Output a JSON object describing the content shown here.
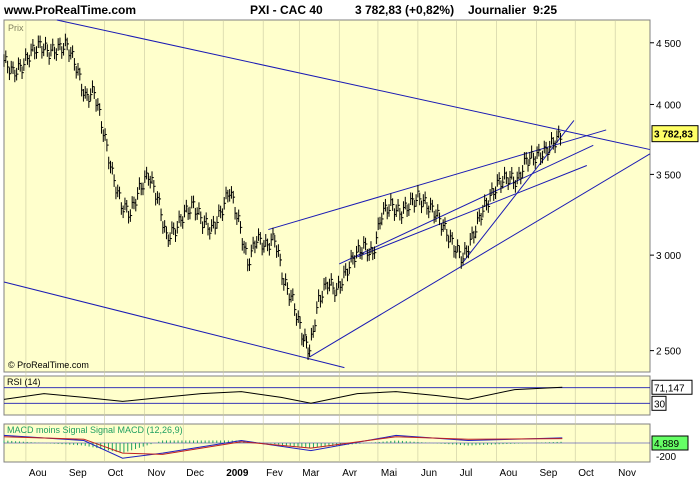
{
  "header": {
    "site": "www.ProRealTime.com",
    "instrument": "PXI - CAC 40",
    "quote": "3 782,83 (+0,82%)",
    "period": "Journalier",
    "time": "9:25"
  },
  "colors": {
    "panel_bg": "#ffffcc",
    "trendline": "#1a1ab4",
    "bars": "#000000",
    "grid": "#c8c8a0",
    "macd_line": "#2020c0",
    "signal_line": "#c02020",
    "macd_hist": "#20a060"
  },
  "watermark": "© ProRealTime.com",
  "chart_data": [
    {
      "type": "bar",
      "title": "Prix",
      "last_price_label": "3 782,83",
      "y_scale": "log",
      "ylim": [
        2400,
        4700
      ],
      "y_ticks": [
        2500,
        3000,
        3500,
        4000,
        4500
      ],
      "y_tick_labels": [
        "2 500",
        "3 000",
        "3 500",
        "4 000",
        "4 500"
      ],
      "x_months": [
        "Aou",
        "Sep",
        "Oct",
        "Nov",
        "Dec",
        "2009",
        "Fev",
        "Mar",
        "Avr",
        "Mai",
        "Jun",
        "Jul",
        "Aou",
        "Sep",
        "Oct",
        "Nov"
      ],
      "x_month_start_dates": [
        "2008-08-01",
        "2008-09-01",
        "2008-10-01",
        "2008-11-01",
        "2008-12-01",
        "2009-01-01",
        "2009-02-01",
        "2009-03-01",
        "2009-04-01",
        "2009-05-01",
        "2009-06-01",
        "2009-07-01",
        "2009-08-01",
        "2009-09-01",
        "2009-10-01",
        "2009-11-01"
      ],
      "xlim": [
        "2008-07-15",
        "2009-11-28"
      ],
      "series": [
        {
          "values": [
            [
              "2008-07-15",
              4350
            ],
            [
              "2008-07-22",
              4250
            ],
            [
              "2008-07-29",
              4300
            ],
            [
              "2008-08-05",
              4420
            ],
            [
              "2008-08-12",
              4480
            ],
            [
              "2008-08-19",
              4420
            ],
            [
              "2008-08-26",
              4450
            ],
            [
              "2008-09-02",
              4480
            ],
            [
              "2008-09-09",
              4300
            ],
            [
              "2008-09-16",
              4050
            ],
            [
              "2008-09-23",
              4100
            ],
            [
              "2008-09-30",
              3800
            ],
            [
              "2008-10-07",
              3500
            ],
            [
              "2008-10-14",
              3300
            ],
            [
              "2008-10-21",
              3250
            ],
            [
              "2008-10-28",
              3400
            ],
            [
              "2008-11-04",
              3500
            ],
            [
              "2008-11-11",
              3350
            ],
            [
              "2008-11-18",
              3100
            ],
            [
              "2008-11-25",
              3150
            ],
            [
              "2008-12-02",
              3250
            ],
            [
              "2008-12-09",
              3300
            ],
            [
              "2008-12-16",
              3200
            ],
            [
              "2008-12-23",
              3150
            ],
            [
              "2008-12-30",
              3250
            ],
            [
              "2009-01-06",
              3400
            ],
            [
              "2009-01-13",
              3200
            ],
            [
              "2009-01-20",
              2950
            ],
            [
              "2009-01-27",
              3100
            ],
            [
              "2009-02-03",
              3050
            ],
            [
              "2009-02-10",
              3100
            ],
            [
              "2009-02-17",
              2850
            ],
            [
              "2009-02-24",
              2750
            ],
            [
              "2009-03-03",
              2580
            ],
            [
              "2009-03-09",
              2500
            ],
            [
              "2009-03-16",
              2750
            ],
            [
              "2009-03-23",
              2850
            ],
            [
              "2009-03-30",
              2800
            ],
            [
              "2009-04-06",
              2900
            ],
            [
              "2009-04-13",
              3000
            ],
            [
              "2009-04-20",
              3050
            ],
            [
              "2009-04-27",
              3000
            ],
            [
              "2009-05-04",
              3250
            ],
            [
              "2009-05-11",
              3300
            ],
            [
              "2009-05-18",
              3250
            ],
            [
              "2009-05-25",
              3300
            ],
            [
              "2009-06-01",
              3350
            ],
            [
              "2009-06-08",
              3300
            ],
            [
              "2009-06-15",
              3250
            ],
            [
              "2009-06-22",
              3150
            ],
            [
              "2009-06-29",
              3050
            ],
            [
              "2009-07-06",
              2980
            ],
            [
              "2009-07-13",
              3100
            ],
            [
              "2009-07-20",
              3250
            ],
            [
              "2009-07-27",
              3350
            ],
            [
              "2009-08-03",
              3450
            ],
            [
              "2009-08-10",
              3480
            ],
            [
              "2009-08-17",
              3450
            ],
            [
              "2009-08-24",
              3600
            ],
            [
              "2009-08-31",
              3620
            ],
            [
              "2009-09-07",
              3650
            ],
            [
              "2009-09-14",
              3720
            ],
            [
              "2009-09-21",
              3783
            ]
          ]
        }
      ]
    },
    {
      "type": "line",
      "title": "RSI (14)",
      "last_value_label": "71,147",
      "level_label": "30",
      "ylim": [
        0,
        100
      ],
      "x": [
        "2008-07-15",
        "2008-08-15",
        "2008-09-15",
        "2008-10-15",
        "2008-11-15",
        "2008-12-15",
        "2009-01-15",
        "2009-02-15",
        "2009-03-10",
        "2009-04-15",
        "2009-05-15",
        "2009-06-15",
        "2009-07-10",
        "2009-08-15",
        "2009-09-21"
      ],
      "values": [
        40,
        55,
        45,
        35,
        45,
        55,
        60,
        45,
        30,
        55,
        60,
        50,
        40,
        65,
        71.147
      ]
    },
    {
      "type": "line",
      "title": "MACD moins Signal Signal MACD (12,26,9)",
      "last_value_label": "4,889",
      "y_tick_labels": [
        "-200"
      ],
      "series": [
        {
          "name": "MACD",
          "x": [
            "2008-07-15",
            "2008-09-15",
            "2008-10-15",
            "2008-11-15",
            "2009-01-15",
            "2009-03-10",
            "2009-05-15",
            "2009-07-10",
            "2009-09-21"
          ],
          "values": [
            60,
            20,
            -120,
            -80,
            20,
            -60,
            60,
            20,
            40
          ]
        },
        {
          "name": "Signal",
          "x": [
            "2008-07-15",
            "2008-09-15",
            "2008-10-15",
            "2008-11-15",
            "2009-01-15",
            "2009-03-10",
            "2009-05-15",
            "2009-07-10",
            "2009-09-21"
          ],
          "values": [
            50,
            30,
            -80,
            -90,
            10,
            -40,
            50,
            30,
            35
          ]
        }
      ]
    }
  ],
  "trendlines": [
    {
      "start": [
        "2008-08-25",
        4700
      ],
      "end": [
        "2009-11-28",
        3670
      ]
    },
    {
      "start": [
        "2008-07-15",
        2850
      ],
      "end": [
        "2009-04-05",
        2420
      ]
    },
    {
      "start": [
        "2009-03-09",
        2470
      ],
      "end": [
        "2009-11-28",
        3640
      ]
    },
    {
      "start": [
        "2009-02-05",
        3150
      ],
      "end": [
        "2009-10-25",
        3810
      ]
    },
    {
      "start": [
        "2009-04-01",
        2950
      ],
      "end": [
        "2009-10-15",
        3700
      ]
    },
    {
      "start": [
        "2009-04-15",
        2990
      ],
      "end": [
        "2009-10-10",
        3560
      ]
    },
    {
      "start": [
        "2009-07-06",
        2960
      ],
      "end": [
        "2009-09-30",
        3880
      ]
    }
  ]
}
